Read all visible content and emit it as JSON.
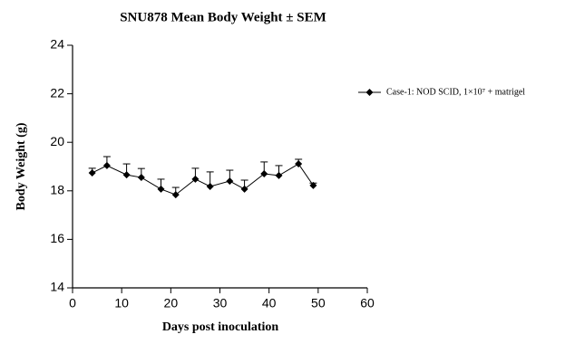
{
  "chart_data": {
    "type": "line",
    "title": "SNU878 Mean Body Weight ± SEM",
    "x_label": "Days post inoculation",
    "y_label": "Body Weight (g)",
    "x": [
      4,
      7,
      11,
      14,
      18,
      21,
      25,
      28,
      32,
      35,
      39,
      42,
      46,
      49
    ],
    "series": [
      {
        "name": "Case-1: NOD SCID, 1×10⁷ + matrigel",
        "color": "#000000",
        "values": [
          18.74,
          19.04,
          18.66,
          18.55,
          18.07,
          17.84,
          18.48,
          18.18,
          18.4,
          18.07,
          18.7,
          18.63,
          19.11,
          18.22
        ],
        "errors": [
          0.19,
          0.37,
          0.45,
          0.37,
          0.41,
          0.3,
          0.45,
          0.6,
          0.45,
          0.37,
          0.49,
          0.41,
          0.19,
          0.1
        ]
      }
    ],
    "xlim": [
      0,
      60
    ],
    "xticks": [
      0,
      10,
      20,
      30,
      40,
      50,
      60
    ],
    "ylim": [
      14,
      24
    ],
    "yticks": [
      14,
      16,
      18,
      20,
      22,
      24
    ],
    "legend": "right"
  }
}
